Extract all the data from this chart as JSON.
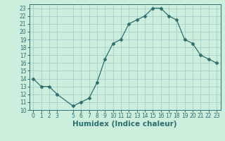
{
  "x": [
    0,
    1,
    2,
    3,
    5,
    6,
    7,
    8,
    9,
    10,
    11,
    12,
    13,
    14,
    15,
    16,
    17,
    18,
    19,
    20,
    21,
    22,
    23
  ],
  "y": [
    14,
    13,
    13,
    12,
    10.5,
    11,
    11.5,
    13.5,
    16.5,
    18.5,
    19,
    21,
    21.5,
    22,
    23,
    23,
    22,
    21.5,
    19,
    18.5,
    17,
    16.5,
    16
  ],
  "xlabel": "Humidex (Indice chaleur)",
  "ylim": [
    10,
    23.5
  ],
  "xlim": [
    -0.5,
    23.5
  ],
  "yticks": [
    10,
    11,
    12,
    13,
    14,
    15,
    16,
    17,
    18,
    19,
    20,
    21,
    22,
    23
  ],
  "xticks": [
    0,
    1,
    2,
    3,
    5,
    6,
    7,
    8,
    9,
    10,
    11,
    12,
    13,
    14,
    15,
    16,
    17,
    18,
    19,
    20,
    21,
    22,
    23
  ],
  "line_color": "#2d6e6e",
  "marker": "D",
  "marker_size": 2.5,
  "bg_color": "#cceedd",
  "grid_color": "#aacccc",
  "tick_label_fontsize": 5.5,
  "xlabel_fontsize": 7.5
}
